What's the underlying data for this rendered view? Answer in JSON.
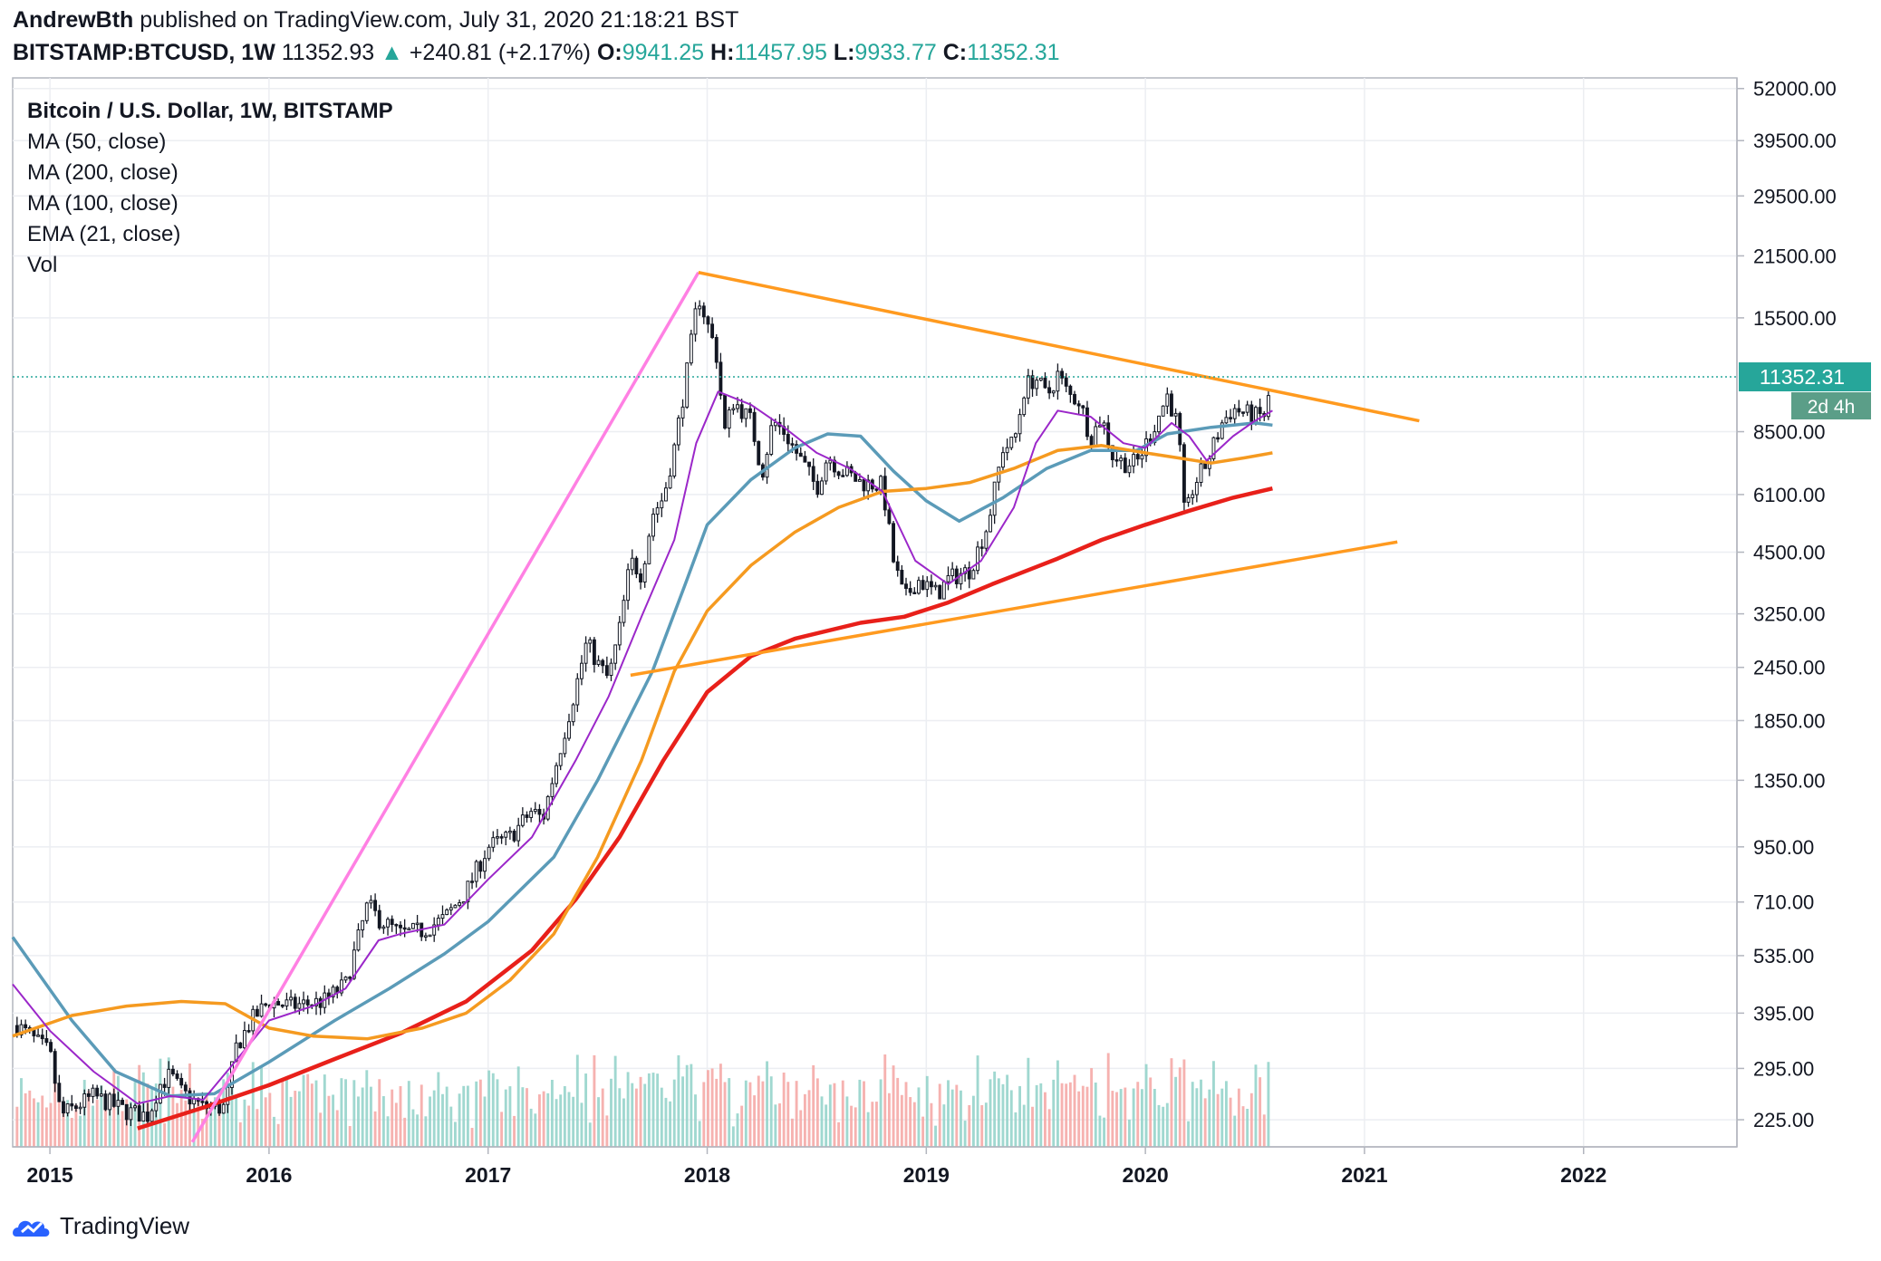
{
  "header": {
    "author": "AndrewBth",
    "published": "published on TradingView.com, July 31, 2020 21:18:21 BST",
    "symbol": "BITSTAMP:BTCUSD, 1W",
    "last": "11352.93",
    "change": "+240.81 (+2.17%)",
    "o_label": "O:",
    "o": "9941.25",
    "h_label": "H:",
    "h": "11457.95",
    "l_label": "L:",
    "l": "9933.77",
    "c_label": "C:",
    "c": "11352.31"
  },
  "legend": {
    "title": "Bitcoin / U.S. Dollar, 1W, BITSTAMP",
    "items": [
      "MA (50, close)",
      "MA (200, close)",
      "MA (100, close)",
      "EMA (21, close)",
      "Vol"
    ]
  },
  "price_tag": {
    "value": "11352.31",
    "countdown": "2d 4h"
  },
  "footer": {
    "brand": "TradingView"
  },
  "colors": {
    "up": "#26a69a",
    "down": "#ef5350",
    "candle": "#131722",
    "ma50": "#5b9bb8",
    "ma200": "#e8201a",
    "ma100": "#f59a20",
    "ema21": "#9b27c9",
    "trend_orange": "#ff9a1f",
    "trend_pink": "#ff80e3"
  },
  "chart_data": {
    "type": "candlestick",
    "scale": "log",
    "x_ticks": [
      "2015",
      "2016",
      "2017",
      "2018",
      "2019",
      "2020",
      "2021",
      "2022"
    ],
    "y_ticks": [
      "52000.00",
      "39500.00",
      "29500.00",
      "21500.00",
      "15500.00",
      "8500.00",
      "6100.00",
      "4500.00",
      "3250.00",
      "2450.00",
      "1850.00",
      "1350.00",
      "950.00",
      "710.00",
      "535.00",
      "395.00",
      "295.00",
      "225.00"
    ],
    "ylim": [
      195,
      55000
    ],
    "xlim": [
      2014.83,
      2022.7
    ],
    "last_price": 11352.31,
    "close_path": [
      [
        2014.85,
        370
      ],
      [
        2015.0,
        320
      ],
      [
        2015.05,
        230
      ],
      [
        2015.2,
        255
      ],
      [
        2015.35,
        235
      ],
      [
        2015.45,
        230
      ],
      [
        2015.5,
        270
      ],
      [
        2015.55,
        285
      ],
      [
        2015.6,
        260
      ],
      [
        2015.7,
        240
      ],
      [
        2015.8,
        240
      ],
      [
        2015.85,
        330
      ],
      [
        2015.92,
        380
      ],
      [
        2016.0,
        420
      ],
      [
        2016.1,
        410
      ],
      [
        2016.25,
        420
      ],
      [
        2016.35,
        460
      ],
      [
        2016.45,
        700
      ],
      [
        2016.5,
        650
      ],
      [
        2016.6,
        600
      ],
      [
        2016.7,
        610
      ],
      [
        2016.8,
        650
      ],
      [
        2016.9,
        750
      ],
      [
        2017.0,
        950
      ],
      [
        2017.1,
        1000
      ],
      [
        2017.2,
        1150
      ],
      [
        2017.25,
        1100
      ],
      [
        2017.3,
        1400
      ],
      [
        2017.4,
        2200
      ],
      [
        2017.45,
        2800
      ],
      [
        2017.5,
        2500
      ],
      [
        2017.55,
        2300
      ],
      [
        2017.6,
        3000
      ],
      [
        2017.65,
        4300
      ],
      [
        2017.7,
        4000
      ],
      [
        2017.75,
        5500
      ],
      [
        2017.8,
        6000
      ],
      [
        2017.85,
        7800
      ],
      [
        2017.9,
        11000
      ],
      [
        2017.96,
        17500
      ],
      [
        2018.0,
        15000
      ],
      [
        2018.04,
        13000
      ],
      [
        2018.08,
        8500
      ],
      [
        2018.12,
        10000
      ],
      [
        2018.2,
        9000
      ],
      [
        2018.25,
        6800
      ],
      [
        2018.3,
        9000
      ],
      [
        2018.35,
        8500
      ],
      [
        2018.45,
        7000
      ],
      [
        2018.5,
        6300
      ],
      [
        2018.55,
        7500
      ],
      [
        2018.6,
        7000
      ],
      [
        2018.7,
        6500
      ],
      [
        2018.8,
        6400
      ],
      [
        2018.85,
        4300
      ],
      [
        2018.9,
        3500
      ],
      [
        2018.96,
        3900
      ],
      [
        2019.05,
        3600
      ],
      [
        2019.1,
        3900
      ],
      [
        2019.2,
        4100
      ],
      [
        2019.28,
        5200
      ],
      [
        2019.35,
        7800
      ],
      [
        2019.4,
        8000
      ],
      [
        2019.45,
        10800
      ],
      [
        2019.5,
        11300
      ],
      [
        2019.55,
        10200
      ],
      [
        2019.6,
        11500
      ],
      [
        2019.65,
        10300
      ],
      [
        2019.7,
        10000
      ],
      [
        2019.75,
        8200
      ],
      [
        2019.8,
        9200
      ],
      [
        2019.85,
        7500
      ],
      [
        2019.9,
        7200
      ],
      [
        2019.96,
        7200
      ],
      [
        2020.03,
        8500
      ],
      [
        2020.1,
        10300
      ],
      [
        2020.15,
        8700
      ],
      [
        2020.18,
        5300
      ],
      [
        2020.22,
        6400
      ],
      [
        2020.28,
        7200
      ],
      [
        2020.35,
        8900
      ],
      [
        2020.4,
        9600
      ],
      [
        2020.45,
        9400
      ],
      [
        2020.5,
        9200
      ],
      [
        2020.55,
        9300
      ],
      [
        2020.58,
        11352
      ]
    ],
    "series": [
      {
        "name": "MA (50, close)",
        "points": [
          [
            2014.83,
            590
          ],
          [
            2015.1,
            380
          ],
          [
            2015.3,
            290
          ],
          [
            2015.55,
            255
          ],
          [
            2015.75,
            258
          ],
          [
            2016.0,
            305
          ],
          [
            2016.3,
            380
          ],
          [
            2016.55,
            450
          ],
          [
            2016.8,
            540
          ],
          [
            2017.0,
            640
          ],
          [
            2017.3,
            900
          ],
          [
            2017.5,
            1350
          ],
          [
            2017.75,
            2400
          ],
          [
            2017.9,
            3800
          ],
          [
            2018.0,
            5200
          ],
          [
            2018.2,
            6600
          ],
          [
            2018.4,
            7800
          ],
          [
            2018.55,
            8400
          ],
          [
            2018.7,
            8300
          ],
          [
            2018.85,
            6900
          ],
          [
            2019.0,
            5900
          ],
          [
            2019.15,
            5300
          ],
          [
            2019.35,
            6000
          ],
          [
            2019.55,
            7000
          ],
          [
            2019.75,
            7700
          ],
          [
            2019.96,
            7700
          ],
          [
            2020.1,
            8400
          ],
          [
            2020.3,
            8700
          ],
          [
            2020.5,
            8900
          ],
          [
            2020.58,
            8800
          ]
        ]
      },
      {
        "name": "MA (200, close)",
        "points": [
          [
            2015.4,
            215
          ],
          [
            2015.7,
            240
          ],
          [
            2016.0,
            270
          ],
          [
            2016.3,
            310
          ],
          [
            2016.6,
            355
          ],
          [
            2016.9,
            420
          ],
          [
            2017.2,
            550
          ],
          [
            2017.4,
            720
          ],
          [
            2017.6,
            1000
          ],
          [
            2017.8,
            1500
          ],
          [
            2018.0,
            2150
          ],
          [
            2018.2,
            2600
          ],
          [
            2018.4,
            2850
          ],
          [
            2018.7,
            3100
          ],
          [
            2018.9,
            3200
          ],
          [
            2019.1,
            3450
          ],
          [
            2019.3,
            3800
          ],
          [
            2019.6,
            4350
          ],
          [
            2019.8,
            4800
          ],
          [
            2020.0,
            5200
          ],
          [
            2020.2,
            5600
          ],
          [
            2020.4,
            6000
          ],
          [
            2020.58,
            6300
          ]
        ]
      },
      {
        "name": "MA (100, close)",
        "points": [
          [
            2014.83,
            350
          ],
          [
            2015.1,
            390
          ],
          [
            2015.35,
            410
          ],
          [
            2015.6,
            420
          ],
          [
            2015.8,
            415
          ],
          [
            2016.0,
            365
          ],
          [
            2016.2,
            350
          ],
          [
            2016.45,
            345
          ],
          [
            2016.7,
            365
          ],
          [
            2016.9,
            395
          ],
          [
            2017.1,
            470
          ],
          [
            2017.3,
            600
          ],
          [
            2017.5,
            900
          ],
          [
            2017.7,
            1500
          ],
          [
            2017.85,
            2400
          ],
          [
            2018.0,
            3300
          ],
          [
            2018.2,
            4200
          ],
          [
            2018.4,
            5000
          ],
          [
            2018.6,
            5700
          ],
          [
            2018.8,
            6200
          ],
          [
            2019.0,
            6300
          ],
          [
            2019.2,
            6500
          ],
          [
            2019.4,
            7000
          ],
          [
            2019.6,
            7700
          ],
          [
            2019.8,
            7900
          ],
          [
            2020.0,
            7600
          ],
          [
            2020.15,
            7400
          ],
          [
            2020.3,
            7200
          ],
          [
            2020.45,
            7400
          ],
          [
            2020.58,
            7600
          ]
        ]
      },
      {
        "name": "EMA (21, close)",
        "points": [
          [
            2014.83,
            460
          ],
          [
            2015.0,
            360
          ],
          [
            2015.2,
            290
          ],
          [
            2015.4,
            245
          ],
          [
            2015.55,
            255
          ],
          [
            2015.7,
            250
          ],
          [
            2015.9,
            330
          ],
          [
            2016.0,
            380
          ],
          [
            2016.2,
            410
          ],
          [
            2016.35,
            450
          ],
          [
            2016.5,
            580
          ],
          [
            2016.6,
            600
          ],
          [
            2016.8,
            630
          ],
          [
            2017.0,
            800
          ],
          [
            2017.2,
            1000
          ],
          [
            2017.4,
            1500
          ],
          [
            2017.55,
            2100
          ],
          [
            2017.7,
            3200
          ],
          [
            2017.85,
            4800
          ],
          [
            2017.95,
            8000
          ],
          [
            2018.05,
            10500
          ],
          [
            2018.2,
            9800
          ],
          [
            2018.35,
            8700
          ],
          [
            2018.5,
            7600
          ],
          [
            2018.65,
            7000
          ],
          [
            2018.8,
            6200
          ],
          [
            2018.95,
            4300
          ],
          [
            2019.1,
            3800
          ],
          [
            2019.25,
            4300
          ],
          [
            2019.4,
            5700
          ],
          [
            2019.5,
            8000
          ],
          [
            2019.6,
            9500
          ],
          [
            2019.75,
            9200
          ],
          [
            2019.9,
            8000
          ],
          [
            2020.0,
            7800
          ],
          [
            2020.12,
            8900
          ],
          [
            2020.2,
            8300
          ],
          [
            2020.28,
            7300
          ],
          [
            2020.4,
            8300
          ],
          [
            2020.5,
            9000
          ],
          [
            2020.58,
            9500
          ]
        ]
      }
    ],
    "trendlines": [
      {
        "color": "pink",
        "from": [
          2015.65,
          200
        ],
        "to": [
          2017.96,
          19700
        ]
      },
      {
        "color": "orange",
        "from": [
          2017.96,
          19700
        ],
        "to": [
          2021.25,
          9000
        ]
      },
      {
        "color": "orange",
        "from": [
          2017.65,
          2350
        ],
        "to": [
          2021.15,
          4750
        ]
      }
    ]
  }
}
